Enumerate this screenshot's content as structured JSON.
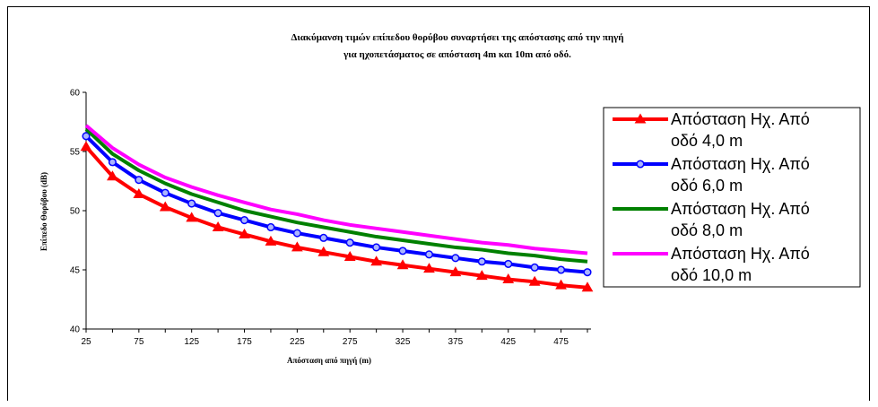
{
  "chart_data": {
    "type": "line",
    "title_line1": "Διακύμανση τιμών επίπεδου θορύβου συναρτήσει της απόστασης από την πηγή",
    "title_line2": "για  ηχοπετάσματος σε απόσταση 4m και 10m από οδό.",
    "xlabel": "Απόσταση από πηγή (m)",
    "ylabel": "Επίπεδο Θορύβου (dB)",
    "ylim": [
      40,
      60
    ],
    "yticks": [
      40,
      45,
      50,
      55,
      60
    ],
    "xticks": [
      25,
      75,
      125,
      175,
      225,
      275,
      325,
      375,
      425,
      475
    ],
    "x": [
      25,
      50,
      75,
      100,
      125,
      150,
      175,
      200,
      225,
      250,
      275,
      300,
      325,
      350,
      375,
      400,
      425,
      450,
      475,
      500
    ],
    "grid": false,
    "legend_position": "right",
    "series": [
      {
        "name_line1": "Απόσταση Ηχ. Από",
        "name_line2": "οδό 4,0 m",
        "color": "#ff0000",
        "marker": "triangle",
        "values": [
          55.4,
          52.9,
          51.4,
          50.3,
          49.4,
          48.6,
          48.0,
          47.4,
          46.9,
          46.5,
          46.1,
          45.7,
          45.4,
          45.1,
          44.8,
          44.5,
          44.2,
          44.0,
          43.7,
          43.5
        ]
      },
      {
        "name_line1": "Απόσταση Ηχ. Από",
        "name_line2": "οδό 6,0 m",
        "color": "#0000ff",
        "marker": "circle",
        "values": [
          56.3,
          54.1,
          52.6,
          51.5,
          50.6,
          49.8,
          49.2,
          48.6,
          48.1,
          47.7,
          47.3,
          46.9,
          46.6,
          46.3,
          46.0,
          45.7,
          45.5,
          45.2,
          45.0,
          44.8
        ]
      },
      {
        "name_line1": "Απόσταση Ηχ. Από",
        "name_line2": "οδό 8,0 m",
        "color": "#008000",
        "marker": "none",
        "values": [
          56.9,
          54.8,
          53.4,
          52.3,
          51.4,
          50.7,
          50.0,
          49.5,
          49.0,
          48.6,
          48.2,
          47.8,
          47.5,
          47.2,
          46.9,
          46.7,
          46.4,
          46.2,
          45.9,
          45.7
        ]
      },
      {
        "name_line1": "Απόσταση Ηχ. Από",
        "name_line2": "οδό 10,0 m",
        "color": "#ff00ff",
        "marker": "none",
        "values": [
          57.2,
          55.3,
          53.9,
          52.8,
          52.0,
          51.3,
          50.7,
          50.1,
          49.7,
          49.2,
          48.8,
          48.5,
          48.2,
          47.9,
          47.6,
          47.3,
          47.1,
          46.8,
          46.6,
          46.4
        ]
      }
    ]
  }
}
